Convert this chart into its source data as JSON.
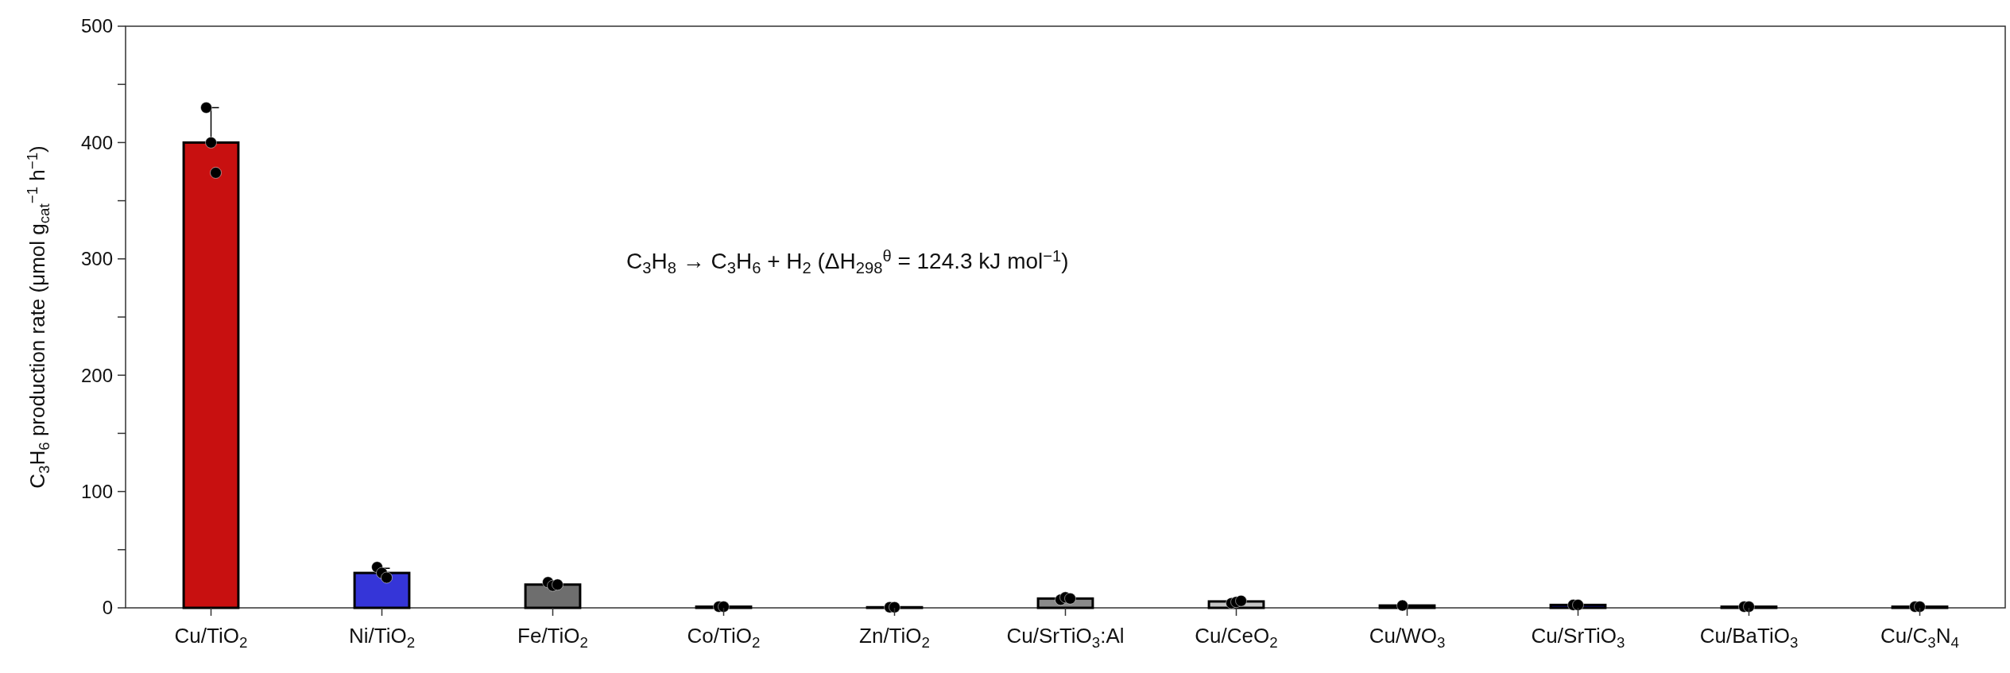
{
  "chart_data": {
    "type": "bar",
    "ylabel": "C$_{3}$H$_{6}$ production rate (μmol g$_{cat}$$^{−1}$ h$^{−1}$)",
    "categories": [
      "Cu/TiO$_{2}$",
      "Ni/TiO$_{2}$",
      "Fe/TiO$_{2}$",
      "Co/TiO$_{2}$",
      "Zn/TiO$_{2}$",
      "Cu/SrTiO$_{3}$:Al",
      "Cu/CeO$_{2}$",
      "Cu/WO$_{3}$",
      "Cu/SrTiO$_{3}$",
      "Cu/BaTiO$_{3}$",
      "Cu/C$_{3}$N$_{4}$"
    ],
    "series": [
      {
        "values": [
          400,
          30,
          20,
          1,
          0.5,
          8,
          5.5,
          2,
          2.5,
          1,
          1
        ],
        "colors": [
          "#c81010",
          "#3535d8",
          "#6e6e6e",
          "#2a2ad0",
          "#20c8c8",
          "#8a8a8a",
          "#c4c4c4",
          "#8a8a20",
          "#12128e",
          "#404040",
          "#505050"
        ],
        "errors": [
          [
            400,
            430
          ],
          [
            30,
            34
          ],
          [
            20,
            22
          ],
          null,
          null,
          null,
          null,
          null,
          null,
          null,
          null
        ]
      },
      {
        "type": "scatter",
        "color": "#000000",
        "x": [
          "Cu/TiO$_{2}$",
          "Cu/TiO$_{2}$",
          "Cu/TiO$_{2}$",
          "Ni/TiO$_{2}$",
          "Ni/TiO$_{2}$",
          "Ni/TiO$_{2}$",
          "Fe/TiO$_{2}$",
          "Fe/TiO$_{2}$",
          "Fe/TiO$_{2}$",
          "Co/TiO$_{2}$",
          "Co/TiO$_{2}$",
          "Zn/TiO$_{2}$",
          "Zn/TiO$_{2}$",
          "Cu/SrTiO$_{3}$:Al",
          "Cu/SrTiO$_{3}$:Al",
          "Cu/SrTiO$_{3}$:Al",
          "Cu/CeO$_{2}$",
          "Cu/CeO$_{2}$",
          "Cu/CeO$_{2}$",
          "Cu/WO$_{3}$",
          "Cu/SrTiO$_{3}$",
          "Cu/SrTiO$_{3}$",
          "Cu/BaTiO$_{3}$",
          "Cu/BaTiO$_{3}$",
          "Cu/C$_{3}$N$_{4}$",
          "Cu/C$_{3}$N$_{4}$"
        ],
        "values": [
          430,
          400,
          374,
          35,
          30,
          26,
          22,
          19,
          20,
          1,
          1,
          0.5,
          0.5,
          7,
          9,
          8,
          4,
          5,
          6,
          2,
          2.5,
          2.5,
          1,
          1,
          1,
          1
        ]
      }
    ],
    "ylim": [
      0,
      500
    ],
    "yticks": [
      0,
      {
        "value": 50,
        "label": null
      },
      100,
      {
        "value": 150,
        "label": null
      },
      200,
      {
        "value": 250,
        "label": null
      },
      300,
      {
        "value": 350,
        "label": null
      },
      400,
      {
        "value": 450,
        "label": null
      },
      500
    ],
    "marker": "circle",
    "annotations": [
      "C$_{3}$H$_{8}$ → C$_{3}$H$_{6}$ + H$_{2}$ (ΔH$_{298}$$^{θ}$ = 124.3 kJ mol$^{−1}$)"
    ]
  }
}
